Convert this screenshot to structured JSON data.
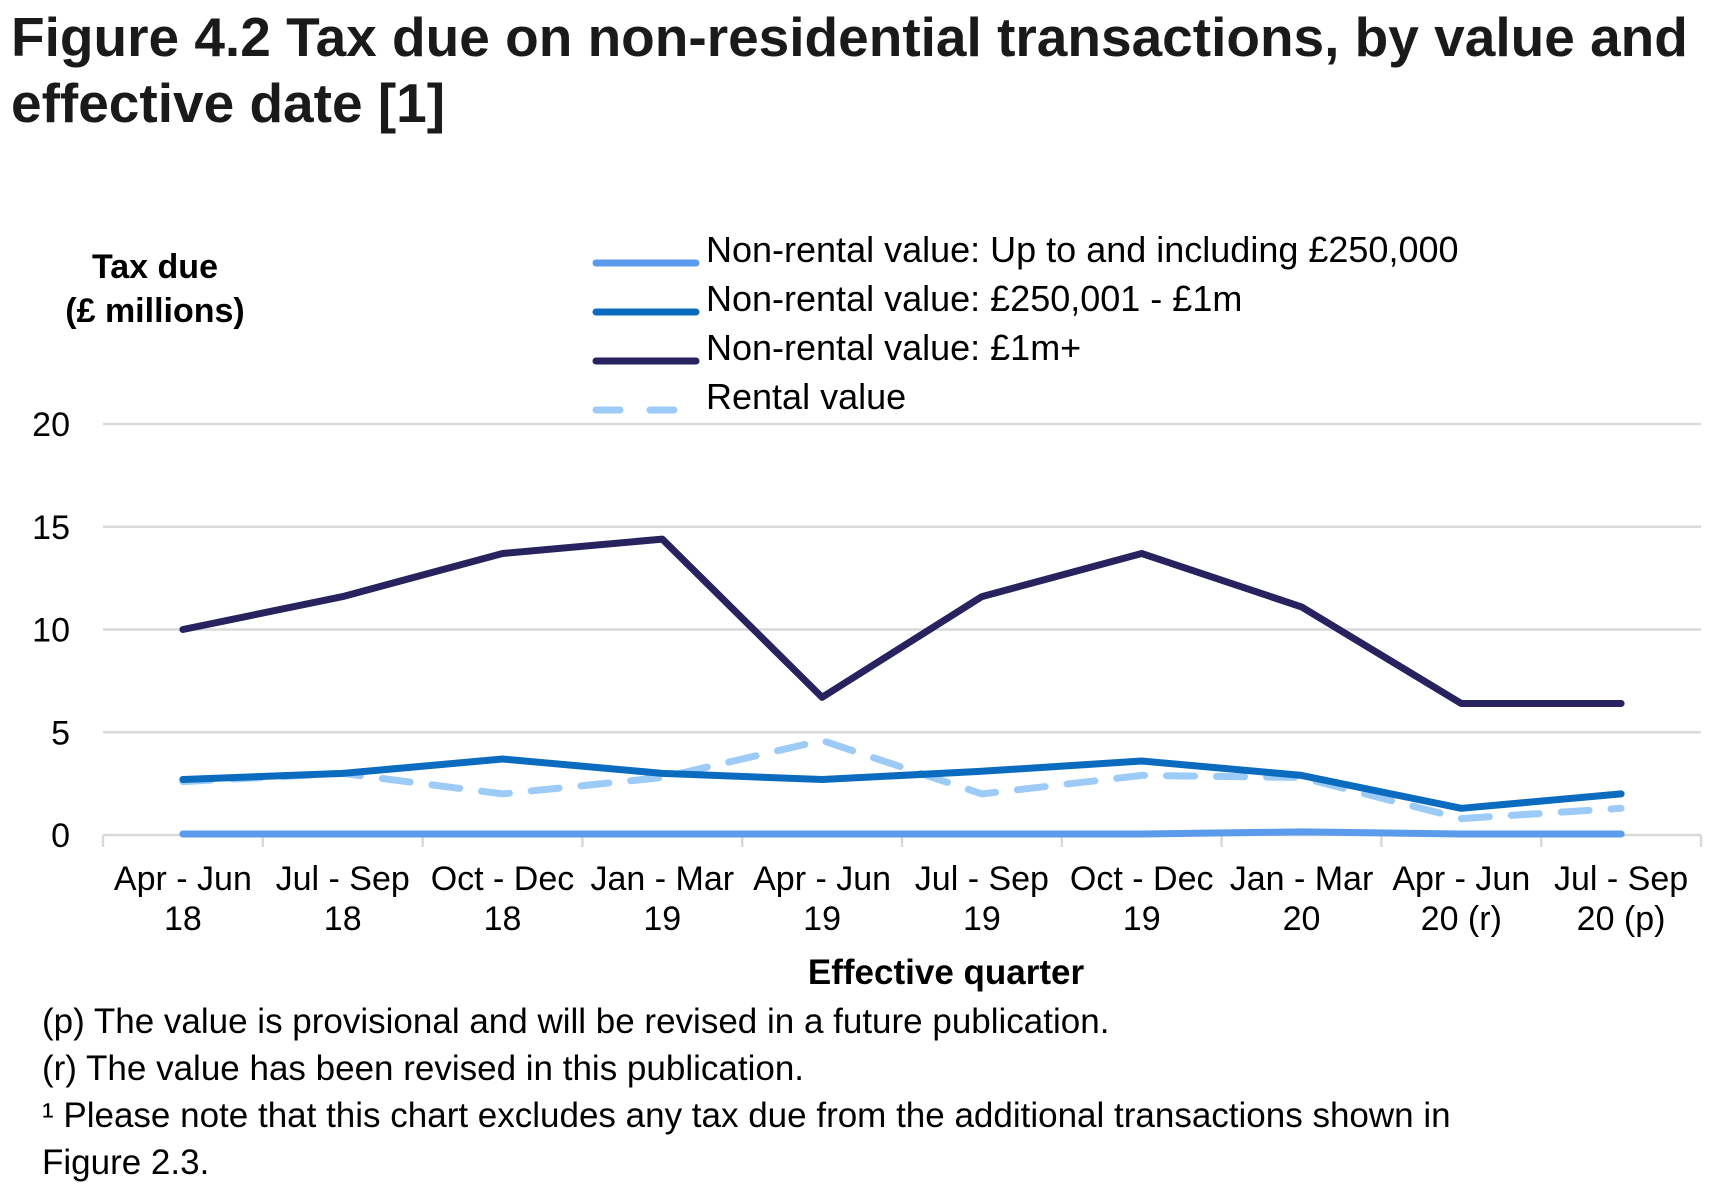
{
  "title": "Figure 4.2  Tax due on non-residential transactions, by value and effective date [1]",
  "chart_data": {
    "type": "line",
    "title": "Figure 4.2  Tax due on non-residential transactions, by value and effective date [1]",
    "xlabel": "Effective quarter",
    "ylabel": "Tax due (£ millions)",
    "ylabel_lines": [
      "Tax due",
      "(£ millions)"
    ],
    "ylim": [
      0,
      20
    ],
    "yticks": [
      0,
      5,
      10,
      15,
      20
    ],
    "grid": true,
    "legend_position": "top",
    "categories": [
      [
        "Apr - Jun",
        "18"
      ],
      [
        "Jul - Sep",
        "18"
      ],
      [
        "Oct - Dec",
        "18"
      ],
      [
        "Jan - Mar",
        "19"
      ],
      [
        "Apr - Jun",
        "19"
      ],
      [
        "Jul - Sep",
        "19"
      ],
      [
        "Oct - Dec",
        "19"
      ],
      [
        "Jan - Mar",
        "20"
      ],
      [
        "Apr - Jun",
        "20 (r)"
      ],
      [
        "Jul - Sep",
        "20 (p)"
      ]
    ],
    "series": [
      {
        "name": "Non-rental value: Up to and including £250,000",
        "color": "#5B9BEC",
        "dashed": false,
        "values": [
          0.05,
          0.05,
          0.05,
          0.05,
          0.05,
          0.05,
          0.05,
          0.15,
          0.05,
          0.05
        ]
      },
      {
        "name": "Non-rental value: £250,001 - £1m",
        "color": "#0B6CBF",
        "dashed": false,
        "values": [
          2.7,
          3.0,
          3.7,
          3.0,
          2.7,
          3.1,
          3.6,
          2.9,
          1.3,
          2.0
        ]
      },
      {
        "name": "Non-rental value: £1m+",
        "color": "#28225F",
        "dashed": false,
        "values": [
          10.0,
          11.6,
          13.7,
          14.4,
          6.7,
          11.6,
          13.7,
          11.1,
          6.4,
          6.4
        ]
      },
      {
        "name": "Rental value",
        "color": "#9DCBF7",
        "dashed": true,
        "values": [
          2.6,
          3.0,
          2.0,
          2.8,
          4.6,
          2.0,
          2.9,
          2.8,
          0.8,
          1.3
        ]
      }
    ]
  },
  "notes": [
    "(p) The value is provisional and will be revised in a future publication.",
    "(r) The value has been revised in this publication.",
    "¹ Please note that this chart excludes any tax due from the additional transactions shown in",
    "Figure 2.3."
  ]
}
